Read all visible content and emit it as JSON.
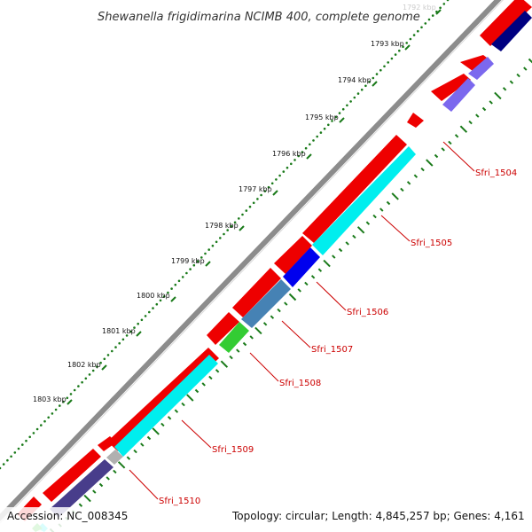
{
  "title": "Shewanella frigidimarina NCIMB 400, complete genome",
  "ticks": [
    "1792 kbp",
    "1793 kbp",
    "1794 kbp",
    "1795 kbp",
    "1796 kbp",
    "1797 kbp",
    "1798 kbp",
    "1799 kbp",
    "1800 kbp",
    "1801 kbp",
    "1802 kbp",
    "1803 kbp"
  ],
  "genes": [
    "Sfri_1504",
    "Sfri_1505",
    "Sfri_1506",
    "Sfri_1507",
    "Sfri_1508",
    "Sfri_1509",
    "Sfri_1510"
  ],
  "footer": {
    "accession": "Accession: NC_008345",
    "summary": "Topology: circular; Length: 4,845,257 bp; Genes: 4,161"
  },
  "colors": {
    "backbone": "#8c8c8c",
    "forward_gene": "#ee0000",
    "cyan_gene": "#00eeee",
    "blue_gene": "#0000ee",
    "steel_gene": "#4682b4",
    "green_gene": "#33cc33",
    "slate_gene": "#483d8b",
    "lavender_gene": "#7b68ee",
    "navy_gene": "#000080",
    "gray_gene": "#b0b0b0",
    "tick": "#1a7a1a",
    "label": "#cc0000"
  }
}
